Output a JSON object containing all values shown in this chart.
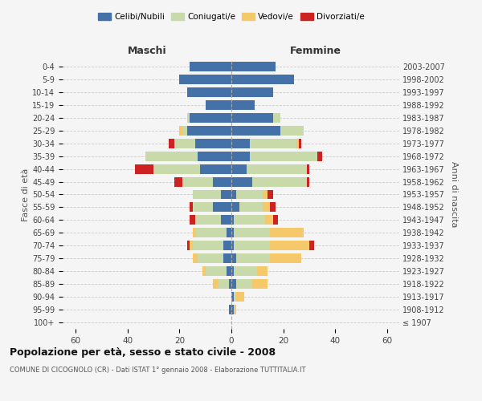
{
  "age_groups": [
    "100+",
    "95-99",
    "90-94",
    "85-89",
    "80-84",
    "75-79",
    "70-74",
    "65-69",
    "60-64",
    "55-59",
    "50-54",
    "45-49",
    "40-44",
    "35-39",
    "30-34",
    "25-29",
    "20-24",
    "15-19",
    "10-14",
    "5-9",
    "0-4"
  ],
  "birth_years": [
    "≤ 1907",
    "1908-1912",
    "1913-1917",
    "1918-1922",
    "1923-1927",
    "1928-1932",
    "1933-1937",
    "1938-1942",
    "1943-1947",
    "1948-1952",
    "1953-1957",
    "1958-1962",
    "1963-1967",
    "1968-1972",
    "1973-1977",
    "1978-1982",
    "1983-1987",
    "1988-1992",
    "1993-1997",
    "1998-2002",
    "2003-2007"
  ],
  "male": {
    "celibe": [
      0,
      1,
      0,
      1,
      2,
      3,
      3,
      2,
      4,
      7,
      4,
      7,
      12,
      13,
      14,
      17,
      16,
      10,
      17,
      20,
      16
    ],
    "coniugato": [
      0,
      0,
      0,
      4,
      8,
      10,
      12,
      12,
      10,
      8,
      11,
      12,
      18,
      20,
      8,
      2,
      1,
      0,
      0,
      0,
      0
    ],
    "vedovo": [
      0,
      0,
      0,
      2,
      1,
      2,
      1,
      1,
      0,
      0,
      0,
      0,
      0,
      0,
      0,
      1,
      0,
      0,
      0,
      0,
      0
    ],
    "divorziato": [
      0,
      0,
      0,
      0,
      0,
      0,
      1,
      0,
      2,
      1,
      0,
      3,
      7,
      0,
      2,
      0,
      0,
      0,
      0,
      0,
      0
    ]
  },
  "female": {
    "nubile": [
      0,
      1,
      1,
      2,
      1,
      2,
      1,
      1,
      1,
      3,
      2,
      8,
      6,
      7,
      7,
      19,
      16,
      9,
      16,
      24,
      17
    ],
    "coniugata": [
      0,
      0,
      1,
      6,
      9,
      13,
      14,
      14,
      12,
      9,
      10,
      21,
      23,
      26,
      18,
      9,
      3,
      0,
      0,
      0,
      0
    ],
    "vedova": [
      0,
      1,
      3,
      6,
      4,
      12,
      15,
      13,
      3,
      3,
      2,
      0,
      0,
      0,
      1,
      0,
      0,
      0,
      0,
      0,
      0
    ],
    "divorziata": [
      0,
      0,
      0,
      0,
      0,
      0,
      2,
      0,
      2,
      2,
      2,
      1,
      1,
      2,
      1,
      0,
      0,
      0,
      0,
      0,
      0
    ]
  },
  "colors": {
    "celibe": "#4472a8",
    "coniugato": "#c8d9aa",
    "vedovo": "#f5c96a",
    "divorziato": "#cc2222"
  },
  "title": "Popolazione per età, sesso e stato civile - 2008",
  "subtitle": "COMUNE DI CICOGNOLO (CR) - Dati ISTAT 1° gennaio 2008 - Elaborazione TUTTITALIA.IT",
  "xlabel_left": "Maschi",
  "xlabel_right": "Femmine",
  "ylabel_left": "Fasce di età",
  "ylabel_right": "Anni di nascita",
  "xlim": 65,
  "background_color": "#f5f5f5",
  "bar_height": 0.75
}
